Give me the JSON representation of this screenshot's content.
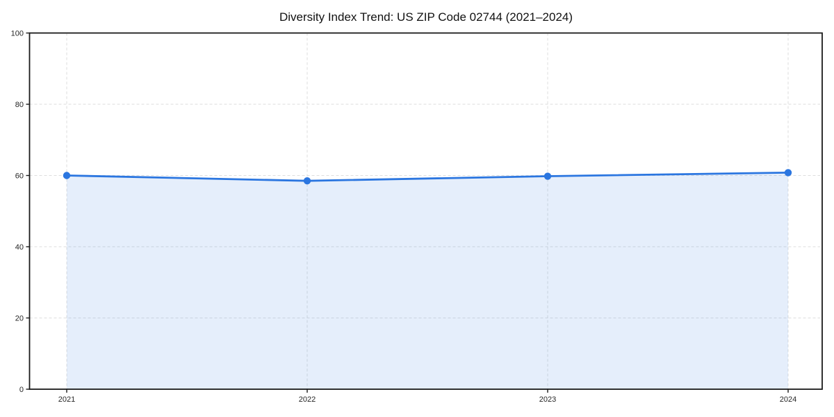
{
  "page": {
    "background": "#ffffff"
  },
  "chart_data": {
    "type": "line",
    "style": "line-with-area-fill-and-markers",
    "title": "Diversity Index Trend: US ZIP Code 02744 (2021–2024)",
    "categories": [
      "2021",
      "2022",
      "2023",
      "2024"
    ],
    "series": [
      {
        "name": "Diversity Index",
        "values": [
          60.0,
          58.5,
          59.8,
          60.8
        ]
      }
    ],
    "xlabel": "",
    "ylabel": "",
    "ylim": [
      0,
      100
    ],
    "yticks": [
      0,
      20,
      40,
      60,
      80,
      100
    ],
    "grid": "dashed-both-axes",
    "legend": "none",
    "colors": {
      "line": "#2b76e0",
      "marker": "#2b76e0",
      "fill": "rgba(43,118,224,0.12)",
      "grid": "#dedede",
      "axis": "#1a1a1a",
      "title_text": "#111111",
      "tick_text": "#262626",
      "background": "#ffffff"
    }
  }
}
